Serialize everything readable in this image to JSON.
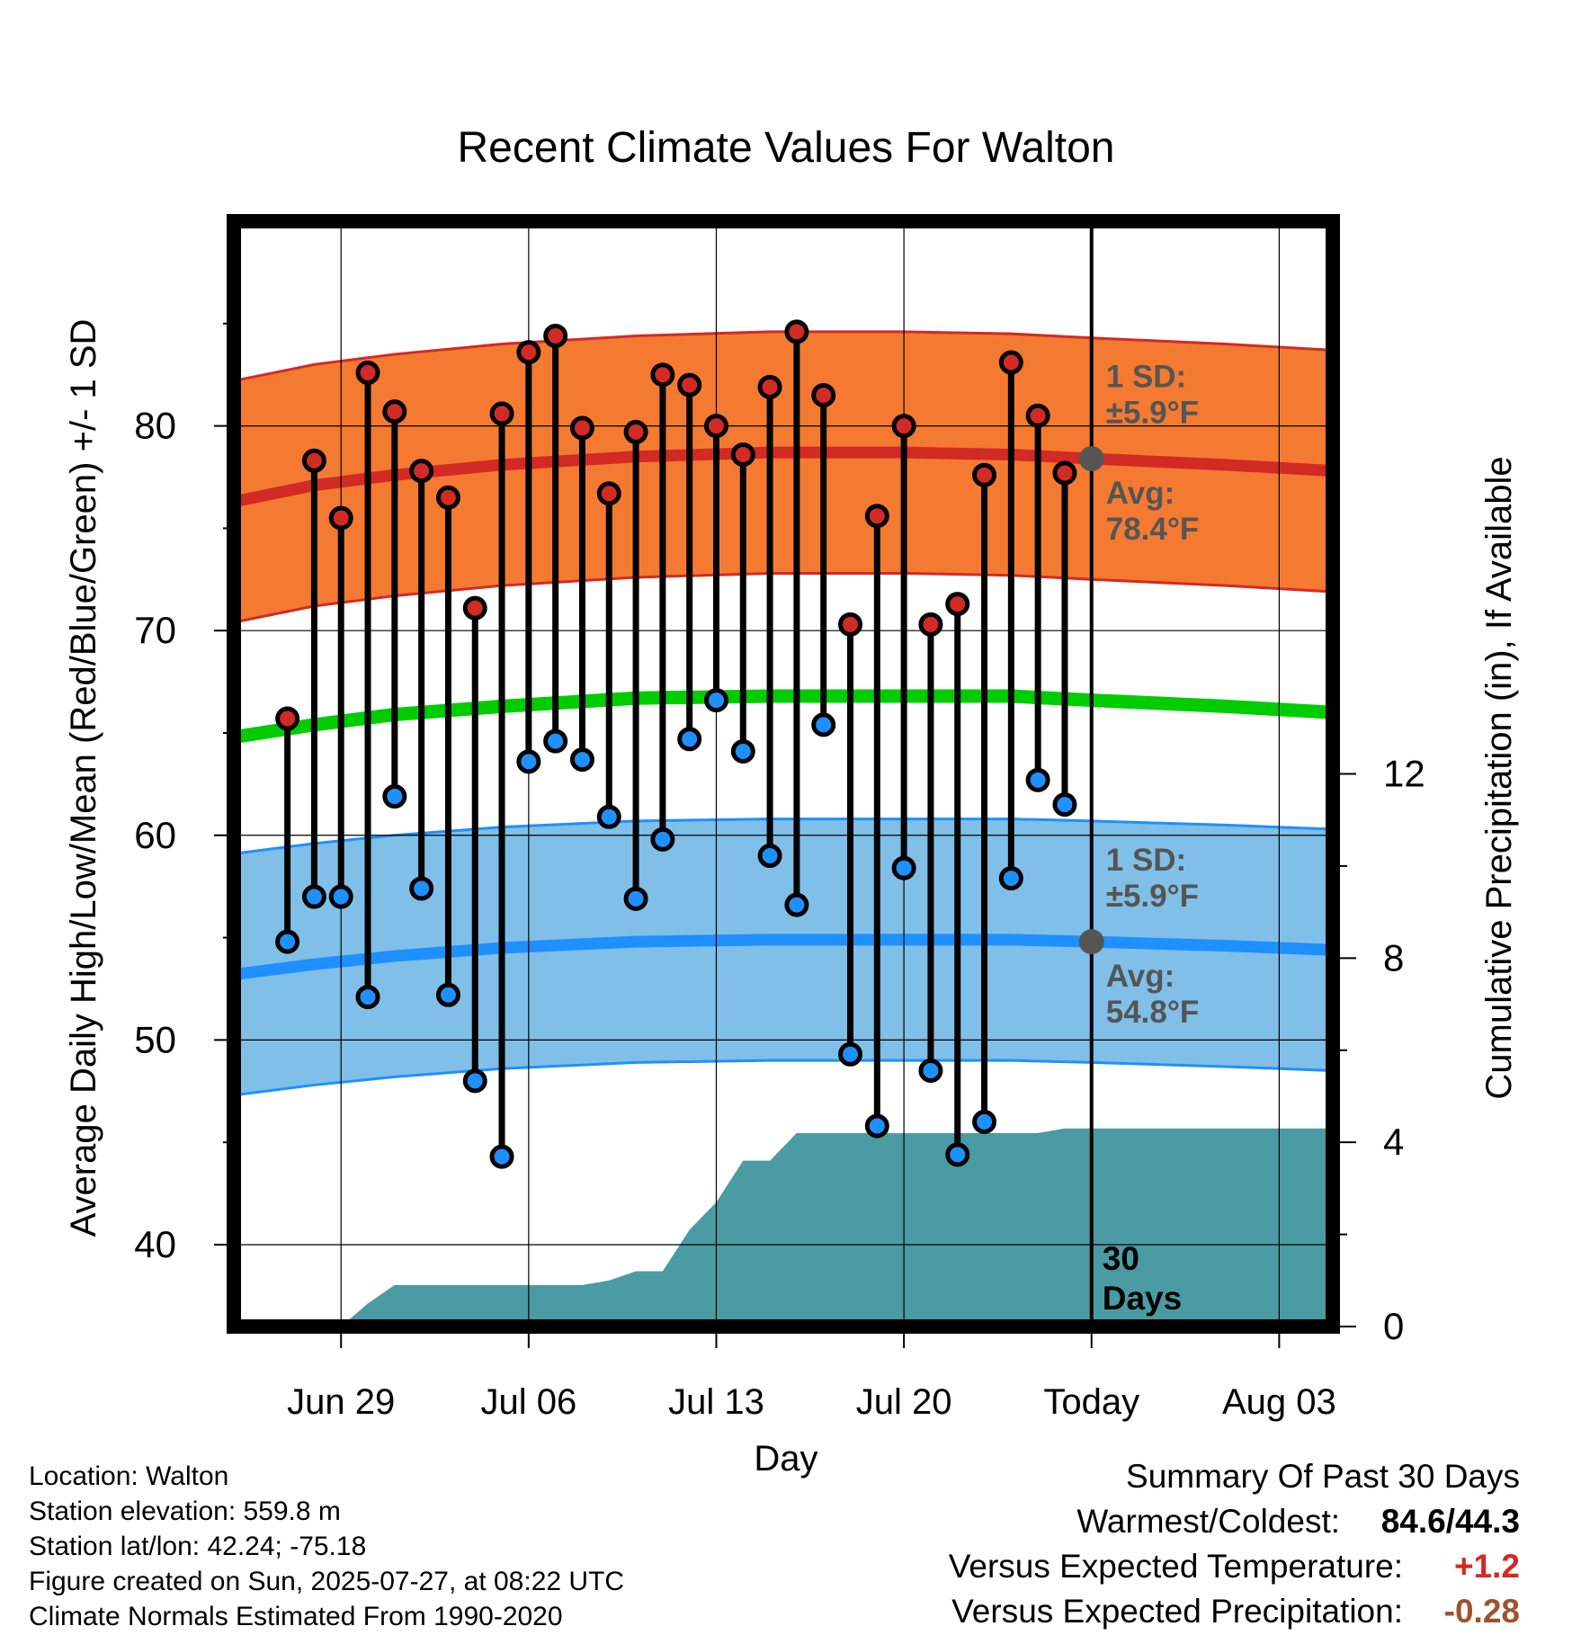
{
  "chart_data": {
    "type": "line",
    "title": "Recent Climate Values For Walton",
    "xlabel": "Day",
    "ylabel_left": "Average Daily High/Low/Mean (Red/Blue/Green) +/- 1 SD",
    "ylabel_right": "Cumulative Precipitation (in), If Available",
    "ylim_left": [
      36,
      90
    ],
    "yticks_left": [
      40,
      50,
      60,
      70,
      80
    ],
    "ylim_right": [
      0,
      24
    ],
    "yticks_right": [
      0,
      4,
      8,
      12
    ],
    "x_tick_labels": [
      "Jun 29",
      "Jul 06",
      "Jul 13",
      "Jul 20",
      "Today",
      "Aug 03"
    ],
    "x_tick_dates": [
      "2025-06-29",
      "2025-07-06",
      "2025-07-13",
      "2025-07-20",
      "2025-07-27",
      "2025-08-03"
    ],
    "x_range": [
      "2025-06-25",
      "2025-08-05"
    ],
    "grid": true,
    "today": "2025-07-27",
    "days_label": "30 Days",
    "normal_dates": [
      "2025-06-25",
      "2025-06-28",
      "2025-07-01",
      "2025-07-05",
      "2025-07-10",
      "2025-07-15",
      "2025-07-20",
      "2025-07-24",
      "2025-07-27",
      "2025-08-01",
      "2025-08-05"
    ],
    "normal_high": [
      76.3,
      77.1,
      77.6,
      78.1,
      78.5,
      78.7,
      78.7,
      78.6,
      78.4,
      78.1,
      77.8
    ],
    "normal_low": [
      53.2,
      53.7,
      54.1,
      54.5,
      54.8,
      54.9,
      54.9,
      54.9,
      54.8,
      54.6,
      54.4
    ],
    "normal_mean": [
      64.8,
      65.4,
      65.9,
      66.3,
      66.7,
      66.8,
      66.8,
      66.8,
      66.6,
      66.3,
      66.0
    ],
    "sd_high": 5.9,
    "sd_low": 5.9,
    "high_annotation": {
      "sd": "1 SD:",
      "sd_value": "±5.9°F",
      "avg": "Avg:",
      "avg_value": "78.4°F"
    },
    "low_annotation": {
      "sd": "1 SD:",
      "sd_value": "±5.9°F",
      "avg": "Avg:",
      "avg_value": "54.8°F"
    },
    "obs_dates": [
      "2025-06-27",
      "2025-06-28",
      "2025-06-29",
      "2025-06-30",
      "2025-07-01",
      "2025-07-02",
      "2025-07-03",
      "2025-07-04",
      "2025-07-05",
      "2025-07-06",
      "2025-07-07",
      "2025-07-08",
      "2025-07-09",
      "2025-07-10",
      "2025-07-11",
      "2025-07-12",
      "2025-07-13",
      "2025-07-14",
      "2025-07-15",
      "2025-07-16",
      "2025-07-17",
      "2025-07-18",
      "2025-07-19",
      "2025-07-20",
      "2025-07-21",
      "2025-07-22",
      "2025-07-23",
      "2025-07-24",
      "2025-07-25",
      "2025-07-26"
    ],
    "obs_high": [
      65.7,
      78.3,
      75.5,
      82.6,
      80.7,
      77.8,
      76.5,
      71.1,
      80.6,
      83.6,
      84.4,
      79.9,
      76.7,
      79.7,
      82.5,
      82.0,
      80.0,
      78.6,
      81.9,
      84.6,
      81.5,
      70.3,
      75.6,
      80.0,
      70.3,
      71.3,
      77.6,
      83.1,
      80.5,
      77.7
    ],
    "obs_low": [
      54.8,
      57.0,
      57.0,
      52.1,
      61.9,
      57.4,
      52.2,
      48.0,
      44.3,
      63.6,
      64.6,
      63.7,
      60.9,
      56.9,
      59.8,
      64.7,
      66.6,
      64.1,
      59.0,
      56.6,
      65.4,
      49.3,
      45.8,
      58.4,
      48.5,
      44.4,
      46.0,
      57.9,
      62.7,
      61.5
    ],
    "precip_dates": [
      "2025-06-25",
      "2025-06-29",
      "2025-06-30",
      "2025-07-01",
      "2025-07-02",
      "2025-07-08",
      "2025-07-09",
      "2025-07-10",
      "2025-07-11",
      "2025-07-12",
      "2025-07-13",
      "2025-07-14",
      "2025-07-15",
      "2025-07-16",
      "2025-07-17",
      "2025-07-18",
      "2025-07-19",
      "2025-07-20",
      "2025-07-25",
      "2025-07-26",
      "2025-08-05"
    ],
    "precip_cum": [
      0,
      0,
      0.5,
      0.9,
      0.9,
      0.9,
      1.0,
      1.2,
      1.2,
      2.1,
      2.7,
      3.6,
      3.6,
      4.2,
      4.2,
      4.2,
      4.2,
      4.2,
      4.2,
      4.3,
      4.3
    ],
    "colors": {
      "high_band": "#f47a31",
      "high_line": "#d22a25",
      "low_band": "#80bfe7",
      "low_line": "#1e90ff",
      "mean_line": "#00cc00",
      "precip": "#4a9ba3",
      "high_marker": "#d22a25",
      "low_marker": "#1e90ff",
      "annotation": "#555555"
    }
  },
  "footer": {
    "location": "Location: Walton",
    "elevation": "Station elevation: 559.8 m",
    "latlon": "Station lat/lon: 42.24; -75.18",
    "created": "Figure created on Sun, 2025-07-27, at 08:22 UTC",
    "normals": "Climate Normals Estimated From 1990-2020"
  },
  "summary": {
    "title": "Summary Of Past 30 Days",
    "warmest_coldest_label": "Warmest/Coldest:",
    "warmest_coldest_value": "84.6/44.3",
    "temp_label": "Versus Expected Temperature:",
    "temp_value": "+1.2",
    "temp_color": "#d22a25",
    "precip_label": "Versus Expected Precipitation:",
    "precip_value": "-0.28",
    "precip_color": "#a0522d"
  }
}
